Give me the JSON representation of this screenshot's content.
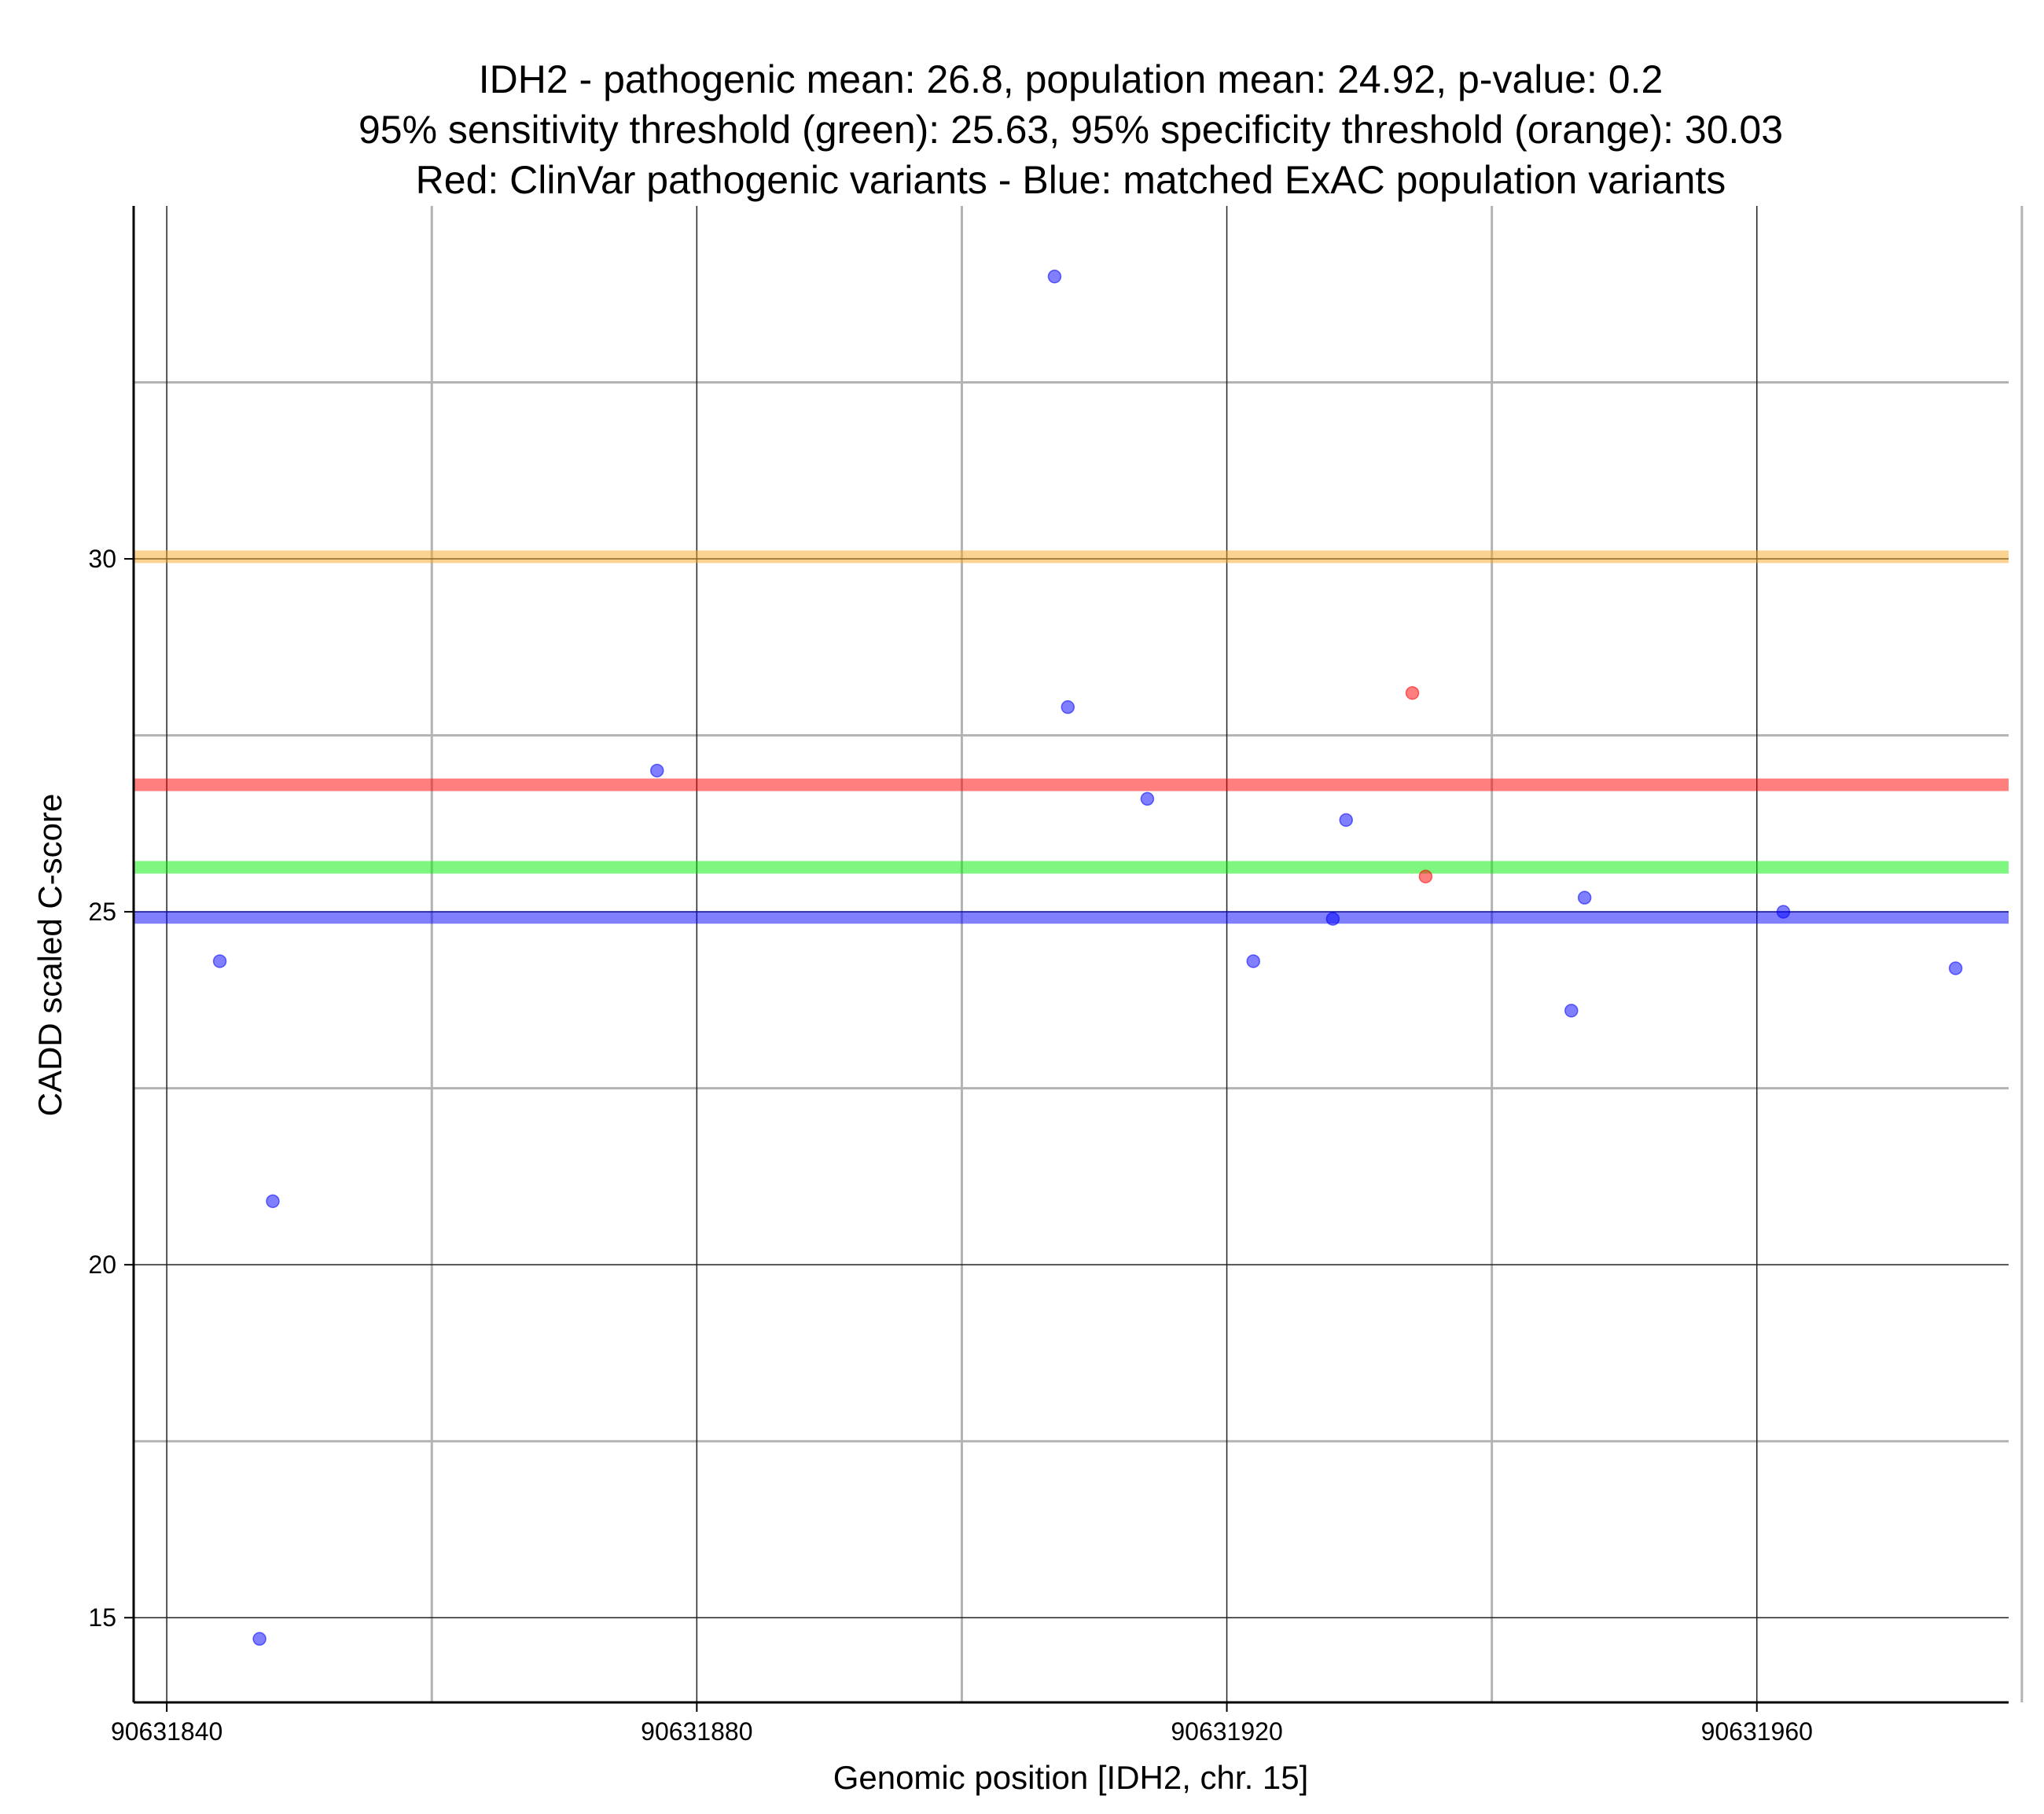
{
  "chart_data": {
    "type": "scatter",
    "title_lines": [
      "IDH2 - pathogenic mean: 26.8, population mean: 24.92, p-value: 0.2",
      "95% sensitivity threshold (green): 25.63, 95% specificity threshold (orange): 30.03",
      "Red: ClinVar pathogenic variants - Blue: matched ExAC population variants"
    ],
    "xlabel": "Genomic position [IDH2, chr. 15]",
    "ylabel": "CADD scaled C-score",
    "xlim": [
      90631837.5,
      90631979
    ],
    "ylim": [
      13.8,
      35
    ],
    "x_major_ticks": [
      90631840,
      90631880,
      90631920,
      90631960
    ],
    "x_minor_ticks": [
      90631860,
      90631900,
      90631940,
      90631980
    ],
    "x_tick_labels": [
      "90631840",
      "90631880",
      "90631920",
      "90631960"
    ],
    "y_major_ticks": [
      15,
      20,
      25,
      30
    ],
    "y_minor_ticks": [
      17.5,
      22.5,
      27.5,
      32.5
    ],
    "y_tick_labels": [
      "15",
      "20",
      "25",
      "30"
    ],
    "grid": true,
    "reference_lines": [
      {
        "name": "specificity threshold",
        "value": 30.03,
        "color": "#f5a623"
      },
      {
        "name": "pathogenic mean",
        "value": 26.8,
        "color": "#ff0000"
      },
      {
        "name": "sensitivity threshold",
        "value": 25.63,
        "color": "#00ee00"
      },
      {
        "name": "population mean",
        "value": 24.92,
        "color": "#0000ff"
      }
    ],
    "series": [
      {
        "name": "ClinVar pathogenic variants",
        "color": "#ff0000",
        "points": [
          {
            "x": 90631934,
            "y": 28.1
          },
          {
            "x": 90631935,
            "y": 25.5
          }
        ]
      },
      {
        "name": "matched ExAC population variants",
        "color": "#0000ff",
        "points": [
          {
            "x": 90631844,
            "y": 24.3
          },
          {
            "x": 90631847,
            "y": 14.7
          },
          {
            "x": 90631848,
            "y": 20.9
          },
          {
            "x": 90631877,
            "y": 27.0
          },
          {
            "x": 90631907,
            "y": 34.0
          },
          {
            "x": 90631908,
            "y": 27.9
          },
          {
            "x": 90631914,
            "y": 26.6
          },
          {
            "x": 90631922,
            "y": 24.3
          },
          {
            "x": 90631928,
            "y": 24.9
          },
          {
            "x": 90631929,
            "y": 26.3
          },
          {
            "x": 90631946,
            "y": 23.6
          },
          {
            "x": 90631947,
            "y": 25.2
          },
          {
            "x": 90631962,
            "y": 25.0
          },
          {
            "x": 90631975,
            "y": 24.2
          }
        ]
      }
    ]
  }
}
